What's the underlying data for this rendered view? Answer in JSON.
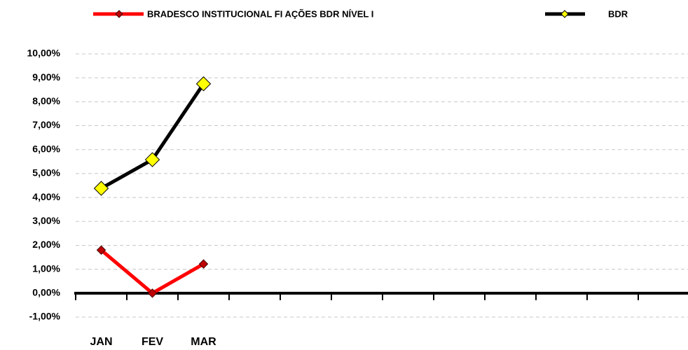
{
  "chart_data": {
    "type": "line",
    "categories": [
      "JAN",
      "FEV",
      "MAR",
      null,
      null,
      null,
      null,
      null,
      null,
      null,
      null,
      null
    ],
    "series": [
      {
        "name": "BRADESCO INSTITUCIONAL FI AÇÕES BDR NÍVEL I",
        "color": "#ff0000",
        "marker_color": "#c00000",
        "values": [
          1.8,
          0.0,
          1.22,
          null,
          null,
          null,
          null,
          null,
          null,
          null,
          null,
          null
        ]
      },
      {
        "name": "BDR",
        "color": "#000000",
        "marker_color": "#ffff00",
        "values": [
          4.38,
          5.58,
          8.75,
          null,
          null,
          null,
          null,
          null,
          null,
          null,
          null,
          null
        ]
      }
    ],
    "ylim": [
      -1,
      10
    ],
    "yticks": [
      {
        "value": -1,
        "label": "-1,00%"
      },
      {
        "value": 0,
        "label": "0,00%"
      },
      {
        "value": 1,
        "label": "1,00%"
      },
      {
        "value": 2,
        "label": "2,00%"
      },
      {
        "value": 3,
        "label": "3,00%"
      },
      {
        "value": 4,
        "label": "4,00%"
      },
      {
        "value": 5,
        "label": "5,00%"
      },
      {
        "value": 6,
        "label": "6,00%"
      },
      {
        "value": 7,
        "label": "7,00%"
      },
      {
        "value": 8,
        "label": "8,00%"
      },
      {
        "value": 9,
        "label": "9,00%"
      },
      {
        "value": 10,
        "label": "10,00%"
      }
    ],
    "grid": true,
    "legend": "top"
  }
}
